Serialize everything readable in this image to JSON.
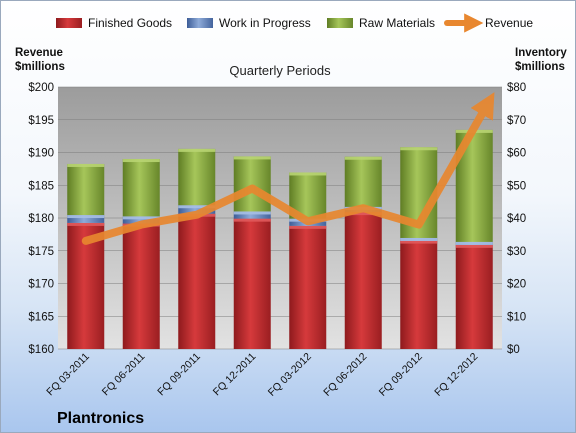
{
  "chart_data": {
    "type": "bar",
    "title": "Quarterly Periods",
    "categories": [
      "FQ 03-2011",
      "FQ 06-2011",
      "FQ 09-2011",
      "FQ 12-2011",
      "FQ 03-2012",
      "FQ 06-2012",
      "FQ 09-2012",
      "FQ 12-2012"
    ],
    "stacked": true,
    "series": [
      {
        "name": "Finished Goods",
        "axis": "right",
        "color": "#c0282c",
        "values": [
          38.5,
          38.3,
          41.3,
          39.8,
          37.6,
          41.8,
          33.1,
          31.8
        ]
      },
      {
        "name": "Work in Progress",
        "axis": "right",
        "color": "#5a7fbf",
        "values": [
          2.4,
          2.2,
          2.6,
          2.2,
          2.2,
          1.6,
          0.8,
          0.9
        ]
      },
      {
        "name": "Raw Materials",
        "axis": "right",
        "color": "#86a83a",
        "values": [
          15.6,
          17.5,
          17.2,
          16.8,
          14.1,
          15.3,
          27.7,
          34.2
        ]
      },
      {
        "name": "Revenue",
        "axis": "left",
        "type": "line",
        "color": "#e8872f",
        "values": [
          176.5,
          179.0,
          180.5,
          184.5,
          179.5,
          181.5,
          179.0,
          196.5
        ]
      }
    ],
    "ylabel_left": "Revenue $millions",
    "ylabel_right": "Inventory $millions",
    "ylim_left": [
      160,
      200
    ],
    "ylim_right": [
      0,
      80
    ],
    "yticks_left": [
      "$160",
      "$165",
      "$170",
      "$175",
      "$180",
      "$185",
      "$190",
      "$195",
      "$200"
    ],
    "yticks_right": [
      "$0",
      "$10",
      "$20",
      "$30",
      "$40",
      "$50",
      "$60",
      "$70",
      "$80"
    ],
    "legend_position": "top",
    "grid": true
  },
  "labels": {
    "ylabel_left_line1": "Revenue",
    "ylabel_left_line2": "$millions",
    "ylabel_right_line1": "Inventory",
    "ylabel_right_line2": "$millions",
    "company": "Plantronics"
  }
}
